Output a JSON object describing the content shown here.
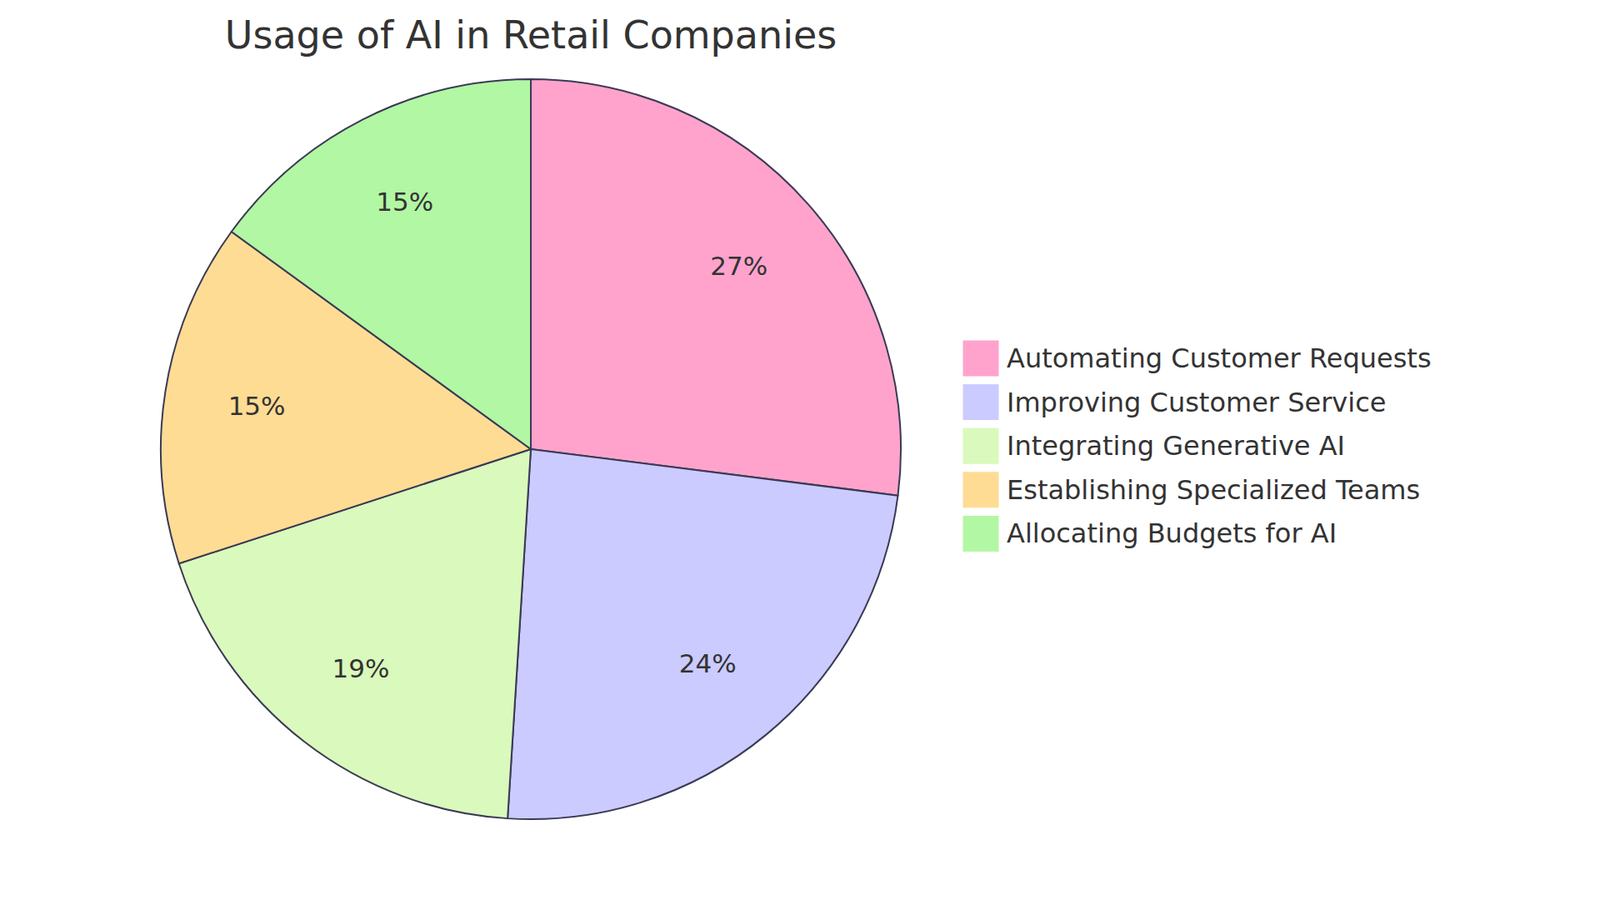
{
  "chart_data": {
    "type": "pie",
    "title": "Usage of AI in Retail Companies",
    "categories": [
      "Automating Customer Requests",
      "Improving Customer Service",
      "Integrating Generative AI",
      "Establishing Specialized Teams",
      "Allocating Budgets for AI"
    ],
    "values": [
      27,
      24,
      19,
      15,
      15
    ],
    "value_labels": [
      "27%",
      "24%",
      "19%",
      "15%",
      "15%"
    ],
    "colors": [
      "#ffa3cc",
      "#cbcbff",
      "#daf9bc",
      "#fedc94",
      "#b2f7a3"
    ],
    "data_labels": true,
    "legend": "right"
  }
}
